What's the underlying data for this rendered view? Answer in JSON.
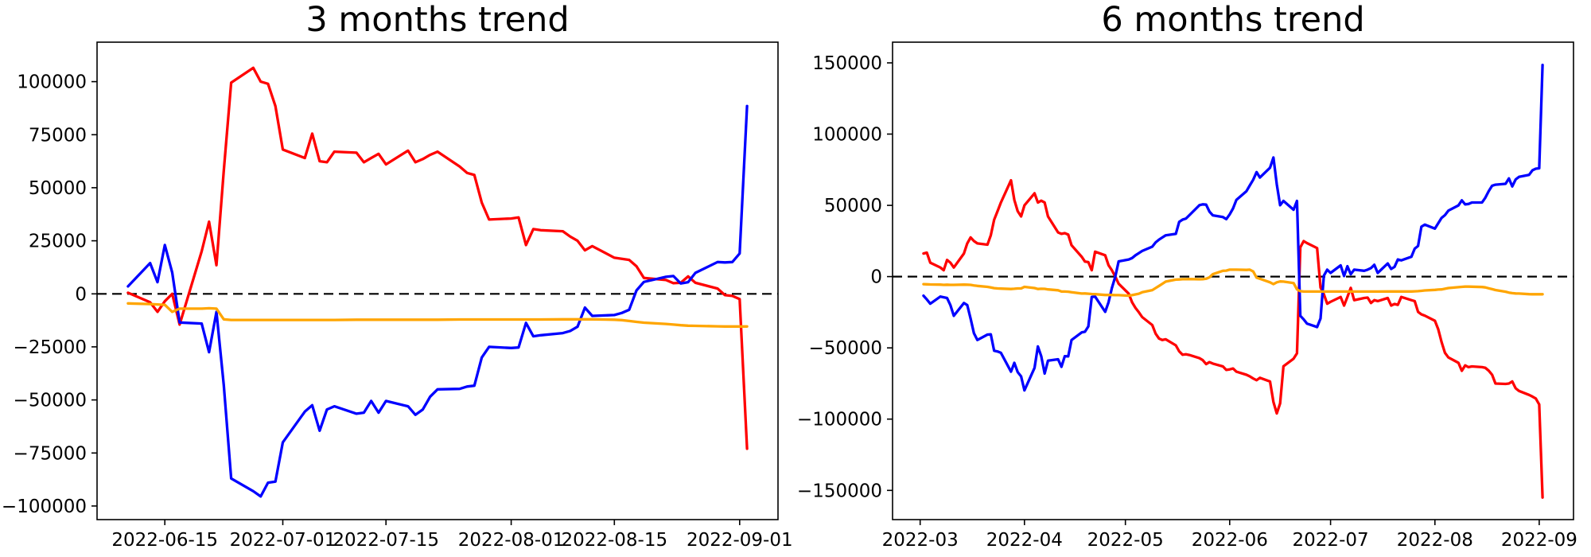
{
  "figure": {
    "background": "#ffffff",
    "axis_color": "#000000",
    "tick_label_color": "#000000"
  },
  "chart_data": [
    {
      "type": "line",
      "title": "3 months trend",
      "grid": false,
      "legend": null,
      "ylim": [
        -106400,
        118600
      ],
      "zero_line": {
        "style": "dashed",
        "color": "#000000",
        "y": 0
      },
      "y_ticks": [
        {
          "value": 100000,
          "label": "100000"
        },
        {
          "value": 75000,
          "label": "75000"
        },
        {
          "value": 50000,
          "label": "50000"
        },
        {
          "value": 25000,
          "label": "25000"
        },
        {
          "value": 0,
          "label": "0"
        },
        {
          "value": -25000,
          "label": "−25000"
        },
        {
          "value": -50000,
          "label": "−50000"
        },
        {
          "value": -75000,
          "label": "−75000"
        },
        {
          "value": -100000,
          "label": "−100000"
        }
      ],
      "x_ticks": [
        {
          "date": "2022-06-15",
          "label": "2022-06-15"
        },
        {
          "date": "2022-07-01",
          "label": "2022-07-01"
        },
        {
          "date": "2022-07-15",
          "label": "2022-07-15"
        },
        {
          "date": "2022-08-01",
          "label": "2022-08-01"
        },
        {
          "date": "2022-08-15",
          "label": "2022-08-15"
        },
        {
          "date": "2022-09-01",
          "label": "2022-09-01"
        }
      ],
      "x_dates": [
        "2022-06-10",
        "2022-06-13",
        "2022-06-14",
        "2022-06-15",
        "2022-06-16",
        "2022-06-17",
        "2022-06-20",
        "2022-06-21",
        "2022-06-22",
        "2022-06-23",
        "2022-06-24",
        "2022-06-27",
        "2022-06-28",
        "2022-06-29",
        "2022-06-30",
        "2022-07-01",
        "2022-07-04",
        "2022-07-05",
        "2022-07-06",
        "2022-07-07",
        "2022-07-08",
        "2022-07-11",
        "2022-07-12",
        "2022-07-13",
        "2022-07-14",
        "2022-07-15",
        "2022-07-18",
        "2022-07-19",
        "2022-07-20",
        "2022-07-21",
        "2022-07-22",
        "2022-07-25",
        "2022-07-26",
        "2022-07-27",
        "2022-07-28",
        "2022-07-29",
        "2022-08-01",
        "2022-08-02",
        "2022-08-03",
        "2022-08-04",
        "2022-08-05",
        "2022-08-08",
        "2022-08-09",
        "2022-08-10",
        "2022-08-11",
        "2022-08-12",
        "2022-08-15",
        "2022-08-16",
        "2022-08-17",
        "2022-08-18",
        "2022-08-19",
        "2022-08-22",
        "2022-08-23",
        "2022-08-24",
        "2022-08-25",
        "2022-08-26",
        "2022-08-29",
        "2022-08-30",
        "2022-08-31",
        "2022-09-01",
        "2022-09-02"
      ],
      "series": [
        {
          "name": "red",
          "color": "#ff0000",
          "values": [
            500,
            -4000,
            -8500,
            -3500,
            0,
            -14500,
            20000,
            34000,
            13500,
            58000,
            99500,
            106500,
            100000,
            99000,
            88500,
            68000,
            64000,
            75500,
            62500,
            62000,
            67000,
            66500,
            62000,
            64000,
            66000,
            61000,
            67500,
            62000,
            63500,
            65500,
            67000,
            60000,
            57000,
            56000,
            43000,
            35000,
            35500,
            36000,
            23000,
            30500,
            30000,
            29500,
            27000,
            25000,
            20500,
            22500,
            17000,
            16500,
            16000,
            13000,
            7500,
            6500,
            5000,
            5200,
            8200,
            5200,
            2500,
            -600,
            -1000,
            -2500,
            -73000
          ]
        },
        {
          "name": "blue",
          "color": "#0000ff",
          "values": [
            3500,
            14500,
            5500,
            23000,
            10000,
            -13500,
            -14000,
            -27500,
            -8500,
            -43000,
            -87000,
            -93000,
            -95500,
            -89000,
            -88500,
            -70000,
            -55500,
            -52500,
            -64500,
            -54500,
            -53000,
            -56500,
            -56000,
            -50500,
            -56000,
            -50500,
            -53000,
            -57000,
            -54500,
            -48500,
            -45000,
            -44800,
            -43700,
            -43300,
            -30000,
            -25000,
            -25500,
            -25300,
            -13700,
            -20000,
            -19500,
            -18500,
            -17500,
            -15500,
            -6500,
            -10400,
            -10000,
            -9000,
            -7500,
            1600,
            5600,
            8000,
            8400,
            4900,
            5500,
            9900,
            15000,
            14800,
            15000,
            19000,
            88500
          ]
        },
        {
          "name": "orange",
          "color": "#ffa500",
          "values": [
            -4500,
            -4800,
            -5000,
            -5200,
            -8500,
            -7000,
            -7000,
            -6800,
            -7000,
            -12000,
            -12300,
            -12300,
            -12300,
            -12300,
            -12300,
            -12300,
            -12300,
            -12300,
            -12300,
            -12300,
            -12300,
            -12200,
            -12200,
            -12200,
            -12200,
            -12200,
            -12200,
            -12200,
            -12200,
            -12200,
            -12200,
            -12100,
            -12100,
            -12100,
            -12100,
            -12100,
            -12100,
            -12100,
            -12100,
            -12100,
            -12100,
            -12000,
            -12000,
            -12000,
            -12000,
            -12000,
            -12200,
            -12400,
            -12800,
            -13200,
            -13600,
            -14200,
            -14500,
            -14800,
            -15000,
            -15100,
            -15300,
            -15400,
            -15400,
            -15400,
            -15400
          ]
        }
      ]
    },
    {
      "type": "line",
      "title": "6 months trend",
      "grid": false,
      "legend": null,
      "ylim": [
        -170500,
        164500
      ],
      "zero_line": {
        "style": "dashed",
        "color": "#000000",
        "y": 0
      },
      "y_ticks": [
        {
          "value": 150000,
          "label": "150000"
        },
        {
          "value": 100000,
          "label": "100000"
        },
        {
          "value": 50000,
          "label": "50000"
        },
        {
          "value": 0,
          "label": "0"
        },
        {
          "value": -50000,
          "label": "−50000"
        },
        {
          "value": -100000,
          "label": "−100000"
        },
        {
          "value": -150000,
          "label": "−150000"
        }
      ],
      "x_ticks": [
        {
          "date": "2022-03-01",
          "label": "2022-03"
        },
        {
          "date": "2022-04-01",
          "label": "2022-04"
        },
        {
          "date": "2022-05-01",
          "label": "2022-05"
        },
        {
          "date": "2022-06-01",
          "label": "2022-06"
        },
        {
          "date": "2022-07-01",
          "label": "2022-07"
        },
        {
          "date": "2022-08-01",
          "label": "2022-08"
        },
        {
          "date": "2022-09-01",
          "label": "2022-09"
        }
      ],
      "x_dates": [
        "2022-03-02",
        "2022-03-03",
        "2022-03-04",
        "2022-03-07",
        "2022-03-08",
        "2022-03-09",
        "2022-03-10",
        "2022-03-11",
        "2022-03-14",
        "2022-03-15",
        "2022-03-16",
        "2022-03-17",
        "2022-03-18",
        "2022-03-21",
        "2022-03-22",
        "2022-03-23",
        "2022-03-24",
        "2022-03-25",
        "2022-03-28",
        "2022-03-29",
        "2022-03-30",
        "2022-03-31",
        "2022-04-01",
        "2022-04-04",
        "2022-04-05",
        "2022-04-06",
        "2022-04-07",
        "2022-04-08",
        "2022-04-11",
        "2022-04-12",
        "2022-04-13",
        "2022-04-14",
        "2022-04-15",
        "2022-04-18",
        "2022-04-19",
        "2022-04-20",
        "2022-04-21",
        "2022-04-22",
        "2022-04-25",
        "2022-04-26",
        "2022-04-27",
        "2022-04-28",
        "2022-04-29",
        "2022-05-02",
        "2022-05-03",
        "2022-05-04",
        "2022-05-05",
        "2022-05-06",
        "2022-05-09",
        "2022-05-10",
        "2022-05-11",
        "2022-05-12",
        "2022-05-13",
        "2022-05-16",
        "2022-05-17",
        "2022-05-18",
        "2022-05-19",
        "2022-05-20",
        "2022-05-23",
        "2022-05-24",
        "2022-05-25",
        "2022-05-26",
        "2022-05-27",
        "2022-05-30",
        "2022-05-31",
        "2022-06-01",
        "2022-06-02",
        "2022-06-03",
        "2022-06-06",
        "2022-06-07",
        "2022-06-08",
        "2022-06-09",
        "2022-06-10",
        "2022-06-13",
        "2022-06-14",
        "2022-06-15",
        "2022-06-16",
        "2022-06-17",
        "2022-06-20",
        "2022-06-21",
        "2022-06-22",
        "2022-06-23",
        "2022-06-24",
        "2022-06-27",
        "2022-06-28",
        "2022-06-29",
        "2022-06-30",
        "2022-07-01",
        "2022-07-04",
        "2022-07-05",
        "2022-07-06",
        "2022-07-07",
        "2022-07-08",
        "2022-07-11",
        "2022-07-12",
        "2022-07-13",
        "2022-07-14",
        "2022-07-15",
        "2022-07-18",
        "2022-07-19",
        "2022-07-20",
        "2022-07-21",
        "2022-07-22",
        "2022-07-25",
        "2022-07-26",
        "2022-07-27",
        "2022-07-28",
        "2022-07-29",
        "2022-08-01",
        "2022-08-02",
        "2022-08-03",
        "2022-08-04",
        "2022-08-05",
        "2022-08-08",
        "2022-08-09",
        "2022-08-10",
        "2022-08-11",
        "2022-08-12",
        "2022-08-15",
        "2022-08-16",
        "2022-08-17",
        "2022-08-18",
        "2022-08-19",
        "2022-08-22",
        "2022-08-23",
        "2022-08-24",
        "2022-08-25",
        "2022-08-26",
        "2022-08-29",
        "2022-08-30",
        "2022-08-31",
        "2022-09-01",
        "2022-09-02"
      ],
      "series": [
        {
          "name": "red",
          "color": "#ff0000",
          "values": [
            16200,
            16800,
            9800,
            6400,
            4500,
            11700,
            9800,
            6400,
            16200,
            23300,
            27500,
            25000,
            23300,
            22400,
            29000,
            39900,
            45900,
            52000,
            67600,
            53800,
            45900,
            42200,
            50000,
            58500,
            52000,
            53300,
            52000,
            42200,
            31000,
            30000,
            30500,
            29500,
            22000,
            14000,
            10500,
            10200,
            4500,
            17500,
            15000,
            8000,
            4500,
            0,
            -5000,
            -12000,
            -18000,
            -22000,
            -25000,
            -28400,
            -34000,
            -40000,
            -43500,
            -44500,
            -44000,
            -48200,
            -52400,
            -54800,
            -54500,
            -55000,
            -57200,
            -58600,
            -61400,
            -60000,
            -61000,
            -63000,
            -65500,
            -65100,
            -64500,
            -66700,
            -68900,
            -70000,
            -71500,
            -72700,
            -71000,
            -73600,
            -88000,
            -96000,
            -89000,
            -62900,
            -57600,
            -53800,
            20500,
            24900,
            23500,
            20000,
            -7700,
            -12400,
            -19000,
            -17700,
            -14300,
            -20300,
            -14300,
            -7900,
            -16500,
            -15000,
            -14700,
            -18500,
            -16500,
            -17200,
            -15000,
            -20300,
            -19200,
            -19800,
            -14300,
            -16500,
            -17200,
            -24700,
            -26500,
            -27400,
            -31000,
            -37000,
            -46000,
            -53500,
            -56700,
            -60500,
            -66100,
            -62300,
            -63500,
            -63000,
            -63500,
            -64000,
            -66000,
            -68900,
            -75000,
            -75300,
            -75000,
            -73600,
            -78400,
            -80200,
            -83000,
            -84200,
            -85500,
            -89700,
            -155000
          ]
        },
        {
          "name": "blue",
          "color": "#0000ff",
          "values": [
            -13400,
            -16000,
            -19000,
            -14000,
            -14500,
            -15000,
            -20000,
            -27500,
            -18500,
            -20000,
            -29400,
            -39700,
            -44500,
            -40700,
            -40500,
            -52000,
            -52500,
            -53500,
            -66700,
            -60500,
            -67000,
            -70000,
            -79800,
            -64000,
            -49000,
            -55800,
            -68000,
            -59000,
            -58000,
            -63300,
            -55800,
            -56000,
            -44500,
            -39200,
            -38700,
            -35000,
            -14300,
            -14000,
            -24700,
            -18000,
            -8000,
            0,
            10700,
            12000,
            13000,
            15000,
            16500,
            18000,
            21000,
            24000,
            26000,
            27500,
            29000,
            30000,
            38400,
            40000,
            40700,
            43000,
            50100,
            50700,
            50500,
            45600,
            43000,
            41800,
            40300,
            43700,
            47800,
            53800,
            60000,
            64000,
            68000,
            73300,
            69500,
            76400,
            83600,
            64800,
            50100,
            53100,
            46900,
            53100,
            -27500,
            -30000,
            -33000,
            -35400,
            -29400,
            700,
            4900,
            2600,
            7900,
            400,
            7300,
            1700,
            4900,
            4100,
            4900,
            6000,
            8300,
            2600,
            9200,
            5400,
            6800,
            12000,
            11400,
            13900,
            19600,
            21500,
            35000,
            36500,
            33700,
            37500,
            41200,
            43100,
            46300,
            50000,
            53500,
            50700,
            51000,
            52000,
            52000,
            55400,
            60000,
            63800,
            64500,
            65100,
            68900,
            63300,
            68200,
            70000,
            71400,
            74600,
            75700,
            76000,
            148500
          ]
        },
        {
          "name": "orange",
          "color": "#ffa500",
          "values": [
            -5300,
            -5400,
            -5500,
            -5600,
            -5800,
            -5700,
            -5800,
            -5800,
            -5600,
            -5700,
            -5800,
            -6200,
            -6500,
            -7200,
            -7600,
            -8100,
            -8300,
            -8400,
            -8700,
            -8500,
            -8300,
            -8300,
            -7200,
            -8000,
            -8700,
            -8500,
            -8600,
            -9000,
            -9600,
            -10400,
            -10500,
            -10600,
            -11000,
            -11900,
            -11800,
            -12000,
            -12200,
            -12300,
            -12900,
            -12800,
            -12900,
            -13000,
            -13000,
            -13400,
            -13000,
            -12500,
            -12000,
            -11000,
            -9500,
            -8000,
            -6500,
            -5000,
            -3500,
            -2100,
            -2000,
            -1800,
            -1800,
            -1700,
            -1900,
            -1800,
            -1500,
            -500,
            1700,
            4100,
            4200,
            4900,
            4900,
            4900,
            4700,
            4900,
            3600,
            -700,
            -1500,
            -4000,
            -5300,
            -4000,
            -3400,
            -3500,
            -4500,
            -9000,
            -10200,
            -10500,
            -10500,
            -10500,
            -10500,
            -10500,
            -10500,
            -10500,
            -10500,
            -10500,
            -10500,
            -10500,
            -10500,
            -10500,
            -10500,
            -10500,
            -10500,
            -10500,
            -10400,
            -10400,
            -10400,
            -10400,
            -10400,
            -10400,
            -10300,
            -10200,
            -10000,
            -9700,
            -9300,
            -9100,
            -9000,
            -8500,
            -8000,
            -7400,
            -7200,
            -7000,
            -7000,
            -7100,
            -7300,
            -7600,
            -8200,
            -8800,
            -9400,
            -10600,
            -11200,
            -11600,
            -11800,
            -11900,
            -12300,
            -12400,
            -12400,
            -12400,
            -12400
          ]
        }
      ]
    }
  ]
}
